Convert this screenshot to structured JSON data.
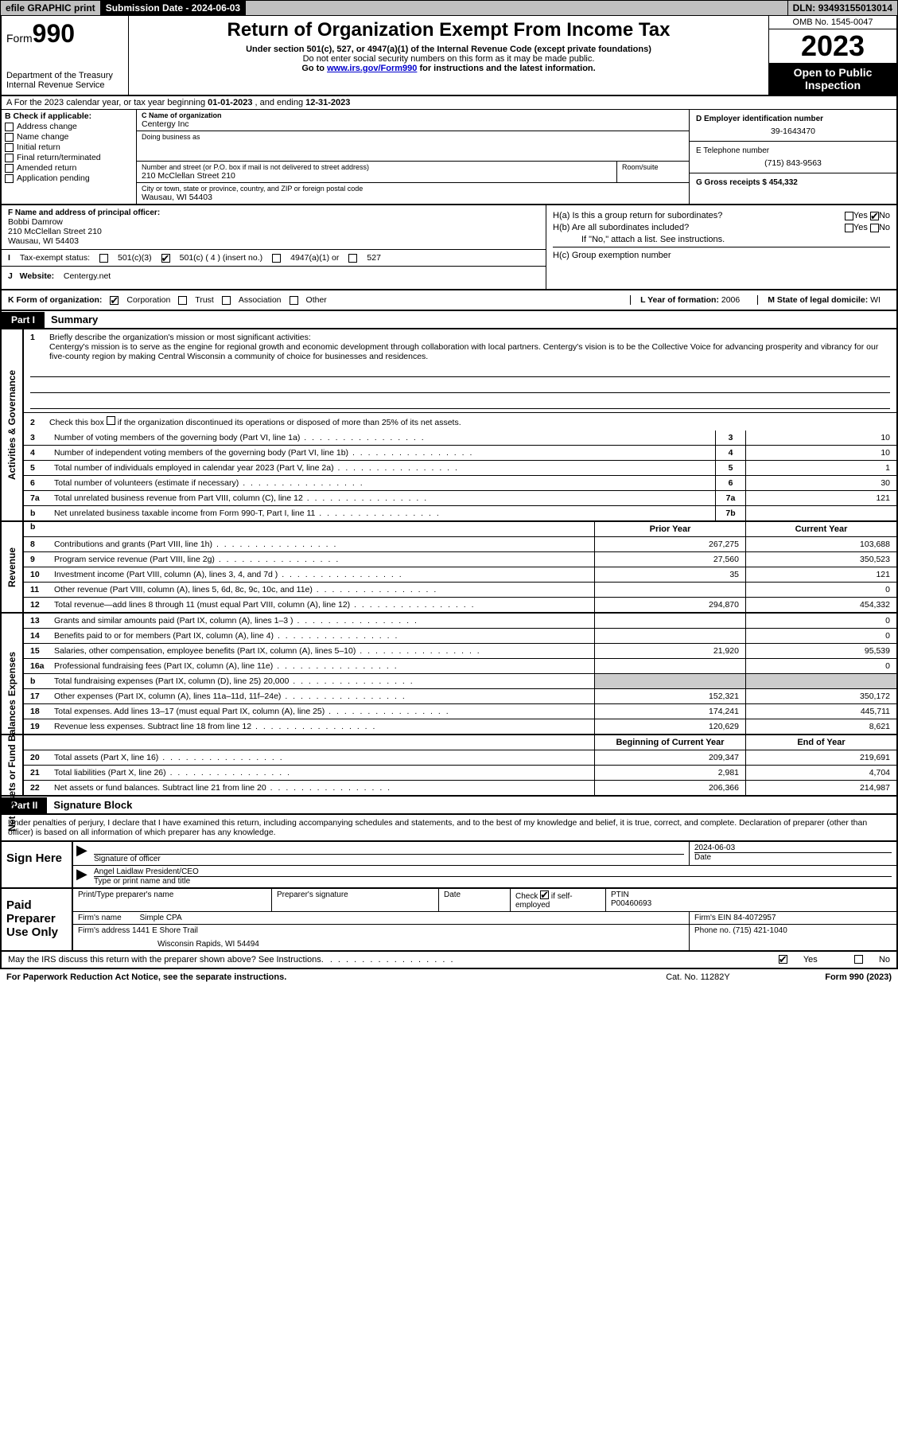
{
  "topbar": {
    "efile": "efile GRAPHIC print",
    "subdate_label": "Submission Date - ",
    "subdate": "2024-06-03",
    "dln_label": "DLN: ",
    "dln": "93493155013014"
  },
  "header": {
    "form_label": "Form",
    "form_num": "990",
    "dept": "Department of the Treasury\nInternal Revenue Service",
    "title": "Return of Organization Exempt From Income Tax",
    "sub1": "Under section 501(c), 527, or 4947(a)(1) of the Internal Revenue Code (except private foundations)",
    "sub2": "Do not enter social security numbers on this form as it may be made public.",
    "sub3a": "Go to ",
    "sub3_link": "www.irs.gov/Form990",
    "sub3b": " for instructions and the latest information.",
    "omb": "OMB No. 1545-0047",
    "year": "2023",
    "inspect": "Open to Public Inspection"
  },
  "lineA": {
    "prefix": "A For the 2023 calendar year, or tax year beginning ",
    "begin": "01-01-2023",
    "mid": "  , and ending ",
    "end": "12-31-2023"
  },
  "secB": {
    "label": "B Check if applicable:",
    "items": [
      "Address change",
      "Name change",
      "Initial return",
      "Final return/terminated",
      "Amended return",
      "Application pending"
    ]
  },
  "secC": {
    "name_label": "C Name of organization",
    "name": "Centergy Inc",
    "dba_label": "Doing business as",
    "dba": "",
    "addr_label": "Number and street (or P.O. box if mail is not delivered to street address)",
    "room_label": "Room/suite",
    "addr": "210 McClellan Street 210",
    "city_label": "City or town, state or province, country, and ZIP or foreign postal code",
    "city": "Wausau, WI  54403"
  },
  "secD": {
    "label": "D Employer identification number",
    "ein": "39-1643470",
    "tel_label": "E Telephone number",
    "tel": "(715) 843-9563",
    "gross_label": "G Gross receipts $ ",
    "gross": "454,332"
  },
  "secF": {
    "label": "F Name and address of principal officer:",
    "name": "Bobbi Damrow",
    "addr1": "210 McClellan Street 210",
    "addr2": "Wausau, WI  54403"
  },
  "secH": {
    "a_label": "H(a)  Is this a group return for subordinates?",
    "b_label": "H(b)  Are all subordinates included?",
    "b_note": "If \"No,\" attach a list. See instructions.",
    "c_label": "H(c)  Group exemption number ",
    "yes": "Yes",
    "no": "No"
  },
  "lineI": {
    "label": "Tax-exempt status:",
    "o1": "501(c)(3)",
    "o2": "501(c) ( 4 ) (insert no.)",
    "o3": "4947(a)(1) or",
    "o4": "527"
  },
  "lineJ": {
    "label": "Website: ",
    "val": "Centergy.net"
  },
  "lineK": {
    "label": "K Form of organization:",
    "o1": "Corporation",
    "o2": "Trust",
    "o3": "Association",
    "o4": "Other"
  },
  "lineL": {
    "label": "L Year of formation: ",
    "val": "2006"
  },
  "lineM": {
    "label": "M State of legal domicile: ",
    "val": "WI"
  },
  "part1": {
    "label": "Part I",
    "title": "Summary"
  },
  "gov": {
    "vert": "Activities & Governance",
    "q1_label": "Briefly describe the organization's mission or most significant activities:",
    "q1_text": "Centergy's mission is to serve as the engine for regional growth and economic development through collaboration with local partners. Centergy's vision is to be the Collective Voice for advancing prosperity and vibrancy for our five-county region by making Central Wisconsin a community of choice for businesses and residences.",
    "q2": "Check this box     if the organization discontinued its operations or disposed of more than 25% of its net assets.",
    "rows": [
      {
        "n": "3",
        "t": "Number of voting members of the governing body (Part VI, line 1a)",
        "c": "3",
        "v": "10"
      },
      {
        "n": "4",
        "t": "Number of independent voting members of the governing body (Part VI, line 1b)",
        "c": "4",
        "v": "10"
      },
      {
        "n": "5",
        "t": "Total number of individuals employed in calendar year 2023 (Part V, line 2a)",
        "c": "5",
        "v": "1"
      },
      {
        "n": "6",
        "t": "Total number of volunteers (estimate if necessary)",
        "c": "6",
        "v": "30"
      },
      {
        "n": "7a",
        "t": "Total unrelated business revenue from Part VIII, column (C), line 12",
        "c": "7a",
        "v": "121"
      },
      {
        "n": "b",
        "t": "Net unrelated business taxable income from Form 990-T, Part I, line 11",
        "c": "7b",
        "v": ""
      }
    ]
  },
  "rev": {
    "vert": "Revenue",
    "hdr_prior": "Prior Year",
    "hdr_curr": "Current Year",
    "rows": [
      {
        "n": "8",
        "t": "Contributions and grants (Part VIII, line 1h)",
        "p": "267,275",
        "c": "103,688"
      },
      {
        "n": "9",
        "t": "Program service revenue (Part VIII, line 2g)",
        "p": "27,560",
        "c": "350,523"
      },
      {
        "n": "10",
        "t": "Investment income (Part VIII, column (A), lines 3, 4, and 7d )",
        "p": "35",
        "c": "121"
      },
      {
        "n": "11",
        "t": "Other revenue (Part VIII, column (A), lines 5, 6d, 8c, 9c, 10c, and 11e)",
        "p": "",
        "c": "0"
      },
      {
        "n": "12",
        "t": "Total revenue—add lines 8 through 11 (must equal Part VIII, column (A), line 12)",
        "p": "294,870",
        "c": "454,332"
      }
    ]
  },
  "exp": {
    "vert": "Expenses",
    "rows": [
      {
        "n": "13",
        "t": "Grants and similar amounts paid (Part IX, column (A), lines 1–3 )",
        "p": "",
        "c": "0"
      },
      {
        "n": "14",
        "t": "Benefits paid to or for members (Part IX, column (A), line 4)",
        "p": "",
        "c": "0"
      },
      {
        "n": "15",
        "t": "Salaries, other compensation, employee benefits (Part IX, column (A), lines 5–10)",
        "p": "21,920",
        "c": "95,539"
      },
      {
        "n": "16a",
        "t": "Professional fundraising fees (Part IX, column (A), line 11e)",
        "p": "",
        "c": "0"
      },
      {
        "n": "b",
        "t": "Total fundraising expenses (Part IX, column (D), line 25) 20,000",
        "p": "",
        "c": "",
        "shade": true
      },
      {
        "n": "17",
        "t": "Other expenses (Part IX, column (A), lines 11a–11d, 11f–24e)",
        "p": "152,321",
        "c": "350,172"
      },
      {
        "n": "18",
        "t": "Total expenses. Add lines 13–17 (must equal Part IX, column (A), line 25)",
        "p": "174,241",
        "c": "445,711"
      },
      {
        "n": "19",
        "t": "Revenue less expenses. Subtract line 18 from line 12",
        "p": "120,629",
        "c": "8,621"
      }
    ]
  },
  "net": {
    "vert": "Net Assets or Fund Balances",
    "hdr_beg": "Beginning of Current Year",
    "hdr_end": "End of Year",
    "rows": [
      {
        "n": "20",
        "t": "Total assets (Part X, line 16)",
        "p": "209,347",
        "c": "219,691"
      },
      {
        "n": "21",
        "t": "Total liabilities (Part X, line 26)",
        "p": "2,981",
        "c": "4,704"
      },
      {
        "n": "22",
        "t": "Net assets or fund balances. Subtract line 21 from line 20",
        "p": "206,366",
        "c": "214,987"
      }
    ]
  },
  "part2": {
    "label": "Part II",
    "title": "Signature Block"
  },
  "perjury": "Under penalties of perjury, I declare that I have examined this return, including accompanying schedules and statements, and to the best of my knowledge and belief, it is true, correct, and complete. Declaration of preparer (other than officer) is based on all information of which preparer has any knowledge.",
  "sign": {
    "left": "Sign Here",
    "sig_label": "Signature of officer",
    "date_label": "Date",
    "date": "2024-06-03",
    "name": "Angel Laidlaw President/CEO",
    "name_label": "Type or print name and title"
  },
  "prep": {
    "left": "Paid Preparer Use Only",
    "col1": "Print/Type preparer's name",
    "col2": "Preparer's signature",
    "col3": "Date",
    "col4a": "Check",
    "col4b": "if self-employed",
    "col5": "PTIN",
    "ptin": "P00460693",
    "firm_name_label": "Firm's name   ",
    "firm_name": "Simple CPA",
    "firm_ein_label": "Firm's EIN ",
    "firm_ein": "84-4072957",
    "firm_addr_label": "Firm's address ",
    "firm_addr1": "1441 E Shore Trail",
    "firm_addr2": "Wisconsin Rapids, WI  54494",
    "phone_label": "Phone no. ",
    "phone": "(715) 421-1040"
  },
  "footer": {
    "q": "May the IRS discuss this return with the preparer shown above? See Instructions.",
    "yes": "Yes",
    "no": "No"
  },
  "paperwork": {
    "l": "For Paperwork Reduction Act Notice, see the separate instructions.",
    "m": "Cat. No. 11282Y",
    "r": "Form 990 (2023)"
  }
}
